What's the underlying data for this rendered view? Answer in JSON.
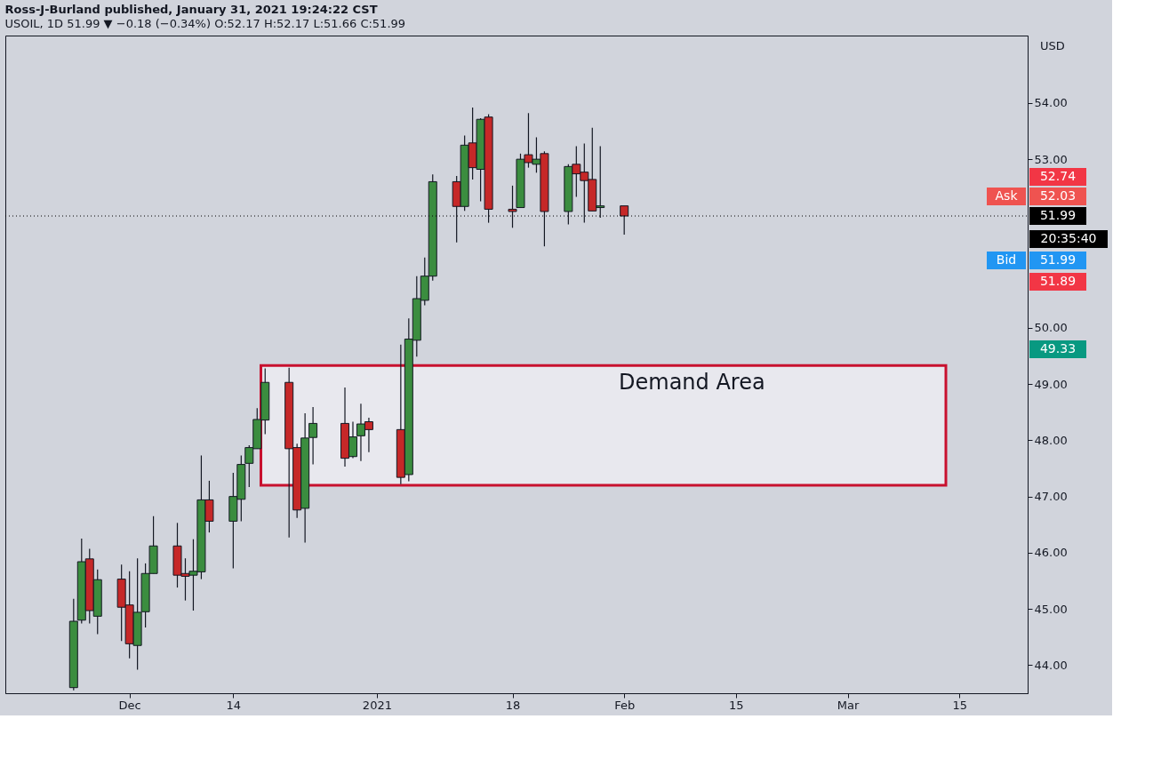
{
  "chart_data": {
    "type": "candlestick",
    "title": "Ross-J-Burland published, January 31, 2021 19:24:22 CST",
    "subtitle": "USOIL, 1D 51.99 ▼ −0.18 (−0.34%) O:52.17 H:52.17 L:51.66 C:51.99",
    "ylabel": "USD",
    "x": [
      "2020-11-24",
      "2020-11-25",
      "2020-11-26",
      "2020-11-27",
      "2020-11-30",
      "2020-12-01",
      "2020-12-02",
      "2020-12-03",
      "2020-12-04",
      "2020-12-07",
      "2020-12-08",
      "2020-12-09",
      "2020-12-10",
      "2020-12-11",
      "2020-12-14",
      "2020-12-15",
      "2020-12-16",
      "2020-12-17",
      "2020-12-18",
      "2020-12-21",
      "2020-12-22",
      "2020-12-23",
      "2020-12-24",
      "2020-12-28",
      "2020-12-29",
      "2020-12-30",
      "2020-12-31",
      "2021-01-04",
      "2021-01-05",
      "2021-01-06",
      "2021-01-07",
      "2021-01-08",
      "2021-01-11",
      "2021-01-12",
      "2021-01-13",
      "2021-01-14",
      "2021-01-15",
      "2021-01-18",
      "2021-01-19",
      "2021-01-20",
      "2021-01-21",
      "2021-01-22",
      "2021-01-25",
      "2021-01-26",
      "2021-01-27",
      "2021-01-28",
      "2021-01-29",
      "2021-02-01"
    ],
    "ohlc": [
      [
        43.6,
        45.18,
        43.55,
        44.78
      ],
      [
        44.8,
        46.25,
        44.74,
        45.84
      ],
      [
        45.89,
        46.07,
        44.74,
        44.97
      ],
      [
        44.87,
        45.7,
        44.55,
        45.52
      ],
      [
        45.53,
        45.79,
        44.43,
        45.03
      ],
      [
        45.07,
        45.67,
        44.12,
        44.38
      ],
      [
        44.35,
        45.9,
        43.92,
        44.94
      ],
      [
        44.95,
        45.81,
        44.67,
        45.63
      ],
      [
        45.63,
        46.65,
        45.63,
        46.12
      ],
      [
        46.12,
        46.53,
        45.38,
        45.6
      ],
      [
        45.63,
        45.9,
        45.15,
        45.58
      ],
      [
        45.6,
        46.24,
        44.97,
        45.67
      ],
      [
        45.66,
        47.73,
        45.53,
        46.94
      ],
      [
        46.94,
        47.28,
        46.36,
        46.56
      ],
      [
        46.56,
        47.42,
        45.72,
        47.0
      ],
      [
        46.95,
        47.73,
        46.56,
        47.57
      ],
      [
        47.59,
        47.91,
        47.17,
        47.87
      ],
      [
        47.85,
        48.57,
        47.85,
        48.37
      ],
      [
        48.36,
        49.28,
        48.11,
        49.03
      ],
      [
        49.03,
        49.29,
        46.27,
        47.85
      ],
      [
        47.87,
        47.94,
        46.62,
        46.76
      ],
      [
        46.79,
        48.48,
        46.18,
        48.04
      ],
      [
        48.05,
        48.59,
        47.57,
        48.3
      ],
      [
        48.3,
        48.94,
        47.53,
        47.68
      ],
      [
        47.71,
        48.33,
        47.68,
        48.06
      ],
      [
        48.08,
        48.65,
        47.63,
        48.29
      ],
      [
        48.33,
        48.4,
        47.79,
        48.19
      ],
      [
        48.19,
        49.7,
        47.22,
        47.34
      ],
      [
        47.39,
        50.17,
        47.27,
        49.8
      ],
      [
        49.78,
        50.92,
        49.49,
        50.52
      ],
      [
        50.49,
        51.25,
        50.4,
        50.92
      ],
      [
        50.92,
        52.73,
        50.84,
        52.6
      ],
      [
        52.6,
        52.7,
        51.52,
        52.16
      ],
      [
        52.16,
        53.42,
        52.08,
        53.25
      ],
      [
        53.29,
        53.92,
        52.64,
        52.85
      ],
      [
        52.82,
        53.73,
        52.25,
        53.71
      ],
      [
        53.75,
        53.8,
        51.87,
        52.11
      ],
      [
        52.11,
        52.53,
        51.78,
        52.07
      ],
      [
        52.14,
        53.1,
        52.14,
        53.0
      ],
      [
        53.08,
        53.82,
        52.85,
        52.94
      ],
      [
        52.91,
        53.39,
        52.76,
        53.0
      ],
      [
        53.1,
        53.14,
        51.45,
        52.07
      ],
      [
        52.07,
        52.91,
        51.84,
        52.87
      ],
      [
        52.91,
        53.23,
        52.33,
        52.74
      ],
      [
        52.77,
        53.28,
        51.87,
        52.62
      ],
      [
        52.64,
        53.56,
        52.08,
        52.08
      ],
      [
        52.14,
        53.23,
        51.96,
        52.17
      ],
      [
        52.17,
        52.17,
        51.66,
        51.99
      ]
    ],
    "xlim": [
      "2020-11-16",
      "2021-03-23"
    ],
    "xticks": [
      {
        "value": "2020-12-01",
        "label": "Dec"
      },
      {
        "value": "2020-12-14",
        "label": "14"
      },
      {
        "value": "2021-01-01",
        "label": "2021"
      },
      {
        "value": "2021-01-18",
        "label": "18"
      },
      {
        "value": "2021-02-01",
        "label": "Feb"
      },
      {
        "value": "2021-02-15",
        "label": "15"
      },
      {
        "value": "2021-03-01",
        "label": "Mar"
      },
      {
        "value": "2021-03-15",
        "label": "15"
      }
    ],
    "ylim": [
      43.5,
      55.2
    ],
    "yticks": [
      {
        "value": 44,
        "label": "44.00"
      },
      {
        "value": 45,
        "label": "45.00"
      },
      {
        "value": 46,
        "label": "46.00"
      },
      {
        "value": 47,
        "label": "47.00"
      },
      {
        "value": 48,
        "label": "48.00"
      },
      {
        "value": 49,
        "label": "49.00"
      },
      {
        "value": 50,
        "label": "50.00"
      },
      {
        "value": 53,
        "label": "53.00"
      },
      {
        "value": 54,
        "label": "54.00"
      }
    ],
    "grid": false,
    "bands": [
      {
        "axis": "y",
        "from": 47.2,
        "to": 49.33,
        "label": "Demand Area",
        "color": "#e8e8ee"
      }
    ],
    "ref_lines": [
      {
        "axis": "y",
        "value": 51.99,
        "label": "51.99",
        "color": "#000000",
        "line_style": "dotted"
      }
    ],
    "annotations": [
      "52.74",
      "Ask",
      "52.03",
      "20:35:40",
      "Bid",
      "51.99",
      "51.89",
      "49.33"
    ]
  }
}
